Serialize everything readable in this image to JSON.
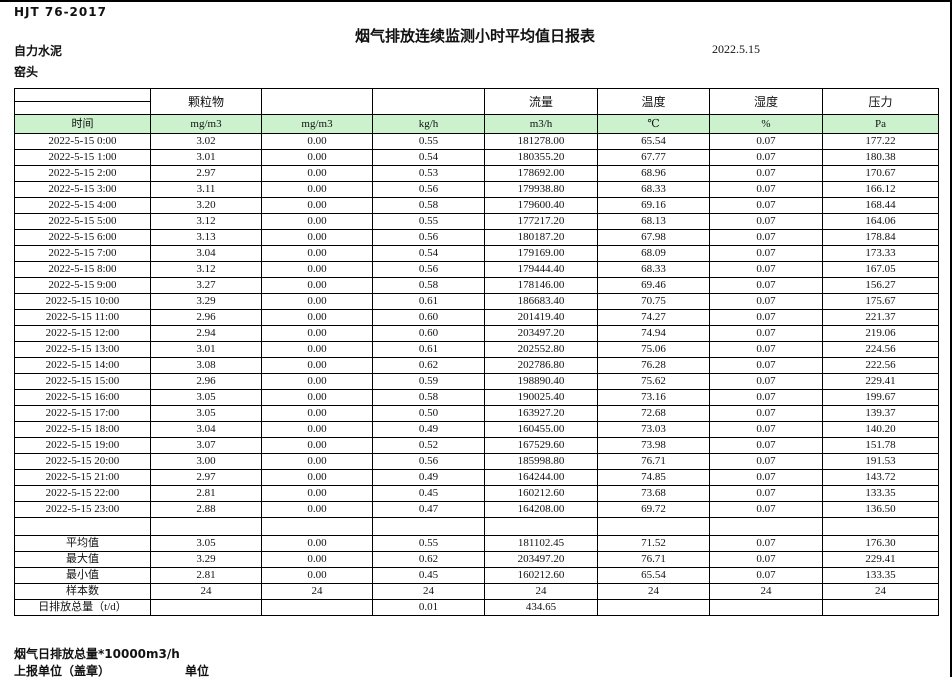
{
  "page": {
    "doc_code": "HJT  76-2017",
    "title": "烟气排放连续监测小时平均值日报表",
    "date": "2022.5.15",
    "company": "自力水泥",
    "location": "窑头"
  },
  "table": {
    "time_label": "时间",
    "group_headers": [
      "颗粒物",
      "",
      "",
      "流量",
      "温度",
      "湿度",
      "压力"
    ],
    "units": [
      "mg/m3",
      "mg/m3",
      "kg/h",
      "m3/h",
      "℃",
      "%",
      "Pa"
    ],
    "rows": [
      {
        "time": "2022-5-15 0:00",
        "values": [
          "3.02",
          "0.00",
          "0.55",
          "181278.00",
          "65.54",
          "0.07",
          "177.22"
        ]
      },
      {
        "time": "2022-5-15 1:00",
        "values": [
          "3.01",
          "0.00",
          "0.54",
          "180355.20",
          "67.77",
          "0.07",
          "180.38"
        ]
      },
      {
        "time": "2022-5-15 2:00",
        "values": [
          "2.97",
          "0.00",
          "0.53",
          "178692.00",
          "68.96",
          "0.07",
          "170.67"
        ]
      },
      {
        "time": "2022-5-15 3:00",
        "values": [
          "3.11",
          "0.00",
          "0.56",
          "179938.80",
          "68.33",
          "0.07",
          "166.12"
        ]
      },
      {
        "time": "2022-5-15 4:00",
        "values": [
          "3.20",
          "0.00",
          "0.58",
          "179600.40",
          "69.16",
          "0.07",
          "168.44"
        ]
      },
      {
        "time": "2022-5-15 5:00",
        "values": [
          "3.12",
          "0.00",
          "0.55",
          "177217.20",
          "68.13",
          "0.07",
          "164.06"
        ]
      },
      {
        "time": "2022-5-15 6:00",
        "values": [
          "3.13",
          "0.00",
          "0.56",
          "180187.20",
          "67.98",
          "0.07",
          "178.84"
        ]
      },
      {
        "time": "2022-5-15 7:00",
        "values": [
          "3.04",
          "0.00",
          "0.54",
          "179169.00",
          "68.09",
          "0.07",
          "173.33"
        ]
      },
      {
        "time": "2022-5-15 8:00",
        "values": [
          "3.12",
          "0.00",
          "0.56",
          "179444.40",
          "68.33",
          "0.07",
          "167.05"
        ]
      },
      {
        "time": "2022-5-15 9:00",
        "values": [
          "3.27",
          "0.00",
          "0.58",
          "178146.00",
          "69.46",
          "0.07",
          "156.27"
        ]
      },
      {
        "time": "2022-5-15 10:00",
        "values": [
          "3.29",
          "0.00",
          "0.61",
          "186683.40",
          "70.75",
          "0.07",
          "175.67"
        ]
      },
      {
        "time": "2022-5-15 11:00",
        "values": [
          "2.96",
          "0.00",
          "0.60",
          "201419.40",
          "74.27",
          "0.07",
          "221.37"
        ]
      },
      {
        "time": "2022-5-15 12:00",
        "values": [
          "2.94",
          "0.00",
          "0.60",
          "203497.20",
          "74.94",
          "0.07",
          "219.06"
        ]
      },
      {
        "time": "2022-5-15 13:00",
        "values": [
          "3.01",
          "0.00",
          "0.61",
          "202552.80",
          "75.06",
          "0.07",
          "224.56"
        ]
      },
      {
        "time": "2022-5-15 14:00",
        "values": [
          "3.08",
          "0.00",
          "0.62",
          "202786.80",
          "76.28",
          "0.07",
          "222.56"
        ]
      },
      {
        "time": "2022-5-15 15:00",
        "values": [
          "2.96",
          "0.00",
          "0.59",
          "198890.40",
          "75.62",
          "0.07",
          "229.41"
        ]
      },
      {
        "time": "2022-5-15 16:00",
        "values": [
          "3.05",
          "0.00",
          "0.58",
          "190025.40",
          "73.16",
          "0.07",
          "199.67"
        ]
      },
      {
        "time": "2022-5-15 17:00",
        "values": [
          "3.05",
          "0.00",
          "0.50",
          "163927.20",
          "72.68",
          "0.07",
          "139.37"
        ]
      },
      {
        "time": "2022-5-15 18:00",
        "values": [
          "3.04",
          "0.00",
          "0.49",
          "160455.00",
          "73.03",
          "0.07",
          "140.20"
        ]
      },
      {
        "time": "2022-5-15 19:00",
        "values": [
          "3.07",
          "0.00",
          "0.52",
          "167529.60",
          "73.98",
          "0.07",
          "151.78"
        ]
      },
      {
        "time": "2022-5-15 20:00",
        "values": [
          "3.00",
          "0.00",
          "0.56",
          "185998.80",
          "76.71",
          "0.07",
          "191.53"
        ]
      },
      {
        "time": "2022-5-15 21:00",
        "values": [
          "2.97",
          "0.00",
          "0.49",
          "164244.00",
          "74.85",
          "0.07",
          "143.72"
        ]
      },
      {
        "time": "2022-5-15 22:00",
        "values": [
          "2.81",
          "0.00",
          "0.45",
          "160212.60",
          "73.68",
          "0.07",
          "133.35"
        ]
      },
      {
        "time": "2022-5-15 23:00",
        "values": [
          "2.88",
          "0.00",
          "0.47",
          "164208.00",
          "69.72",
          "0.07",
          "136.50"
        ]
      }
    ],
    "summary": [
      {
        "label": "平均值",
        "values": [
          "3.05",
          "0.00",
          "0.55",
          "181102.45",
          "71.52",
          "0.07",
          "176.30"
        ]
      },
      {
        "label": "最大值",
        "values": [
          "3.29",
          "0.00",
          "0.62",
          "203497.20",
          "76.71",
          "0.07",
          "229.41"
        ]
      },
      {
        "label": "最小值",
        "values": [
          "2.81",
          "0.00",
          "0.45",
          "160212.60",
          "65.54",
          "0.07",
          "133.35"
        ]
      },
      {
        "label": "样本数",
        "values": [
          "24",
          "24",
          "24",
          "24",
          "24",
          "24",
          "24"
        ]
      },
      {
        "label": "日排放总量（t/d）",
        "values": [
          "",
          "",
          "0.01",
          "434.65",
          "",
          "",
          ""
        ]
      }
    ]
  },
  "footer": {
    "note": "烟气日排放总量*10000m3/h",
    "report_unit_label": "上报单位（盖章）",
    "unit_label": "单位"
  },
  "colors": {
    "header_green": "#ccf2cd",
    "border": "#000000"
  }
}
